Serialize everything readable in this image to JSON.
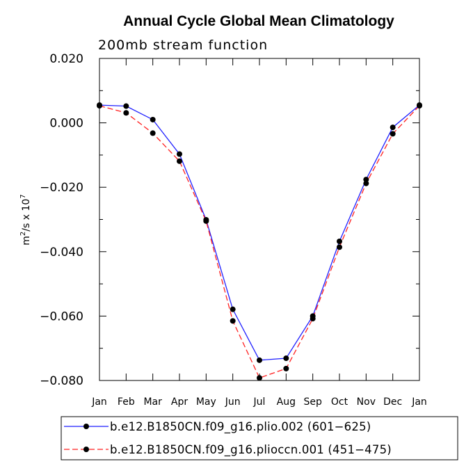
{
  "chart_data": {
    "type": "line",
    "title": "Annual Cycle Global Mean Climatology",
    "subtitle": "200mb stream function",
    "ylabel_main": "m",
    "ylabel_sup1": "2",
    "ylabel_mid": "/s x 10",
    "ylabel_sup2": "7",
    "ylim": [
      -0.08,
      0.02
    ],
    "yticks": [
      0.02,
      0.0,
      -0.02,
      -0.04,
      -0.06,
      -0.08
    ],
    "ytick_labels": [
      "0.020",
      "0.000",
      "−0.020",
      "−0.040",
      "−0.060",
      "−0.080"
    ],
    "categories": [
      "Jan",
      "Feb",
      "Mar",
      "Apr",
      "May",
      "Jun",
      "Jul",
      "Aug",
      "Sep",
      "Oct",
      "Nov",
      "Dec",
      "Jan"
    ],
    "series": [
      {
        "name": "b.e12.B1850CN.f09_g16.plio.002 (601−625)",
        "color": "#1f1fff",
        "dash": "solid",
        "values": [
          0.0055,
          0.0052,
          0.001,
          -0.0097,
          -0.0301,
          -0.0579,
          -0.0737,
          -0.0731,
          -0.06,
          -0.0368,
          -0.0176,
          -0.0014,
          0.0055
        ]
      },
      {
        "name": "b.e12.B1850CN.f09_g16.plioccn.001 (451−475)",
        "color": "#ff1f1f",
        "dash": "dashed",
        "values": [
          0.0053,
          0.0031,
          -0.0032,
          -0.0119,
          -0.0305,
          -0.0615,
          -0.0792,
          -0.0763,
          -0.0608,
          -0.0386,
          -0.0188,
          -0.0034,
          0.0053
        ]
      }
    ],
    "marker_color": "#000000"
  }
}
